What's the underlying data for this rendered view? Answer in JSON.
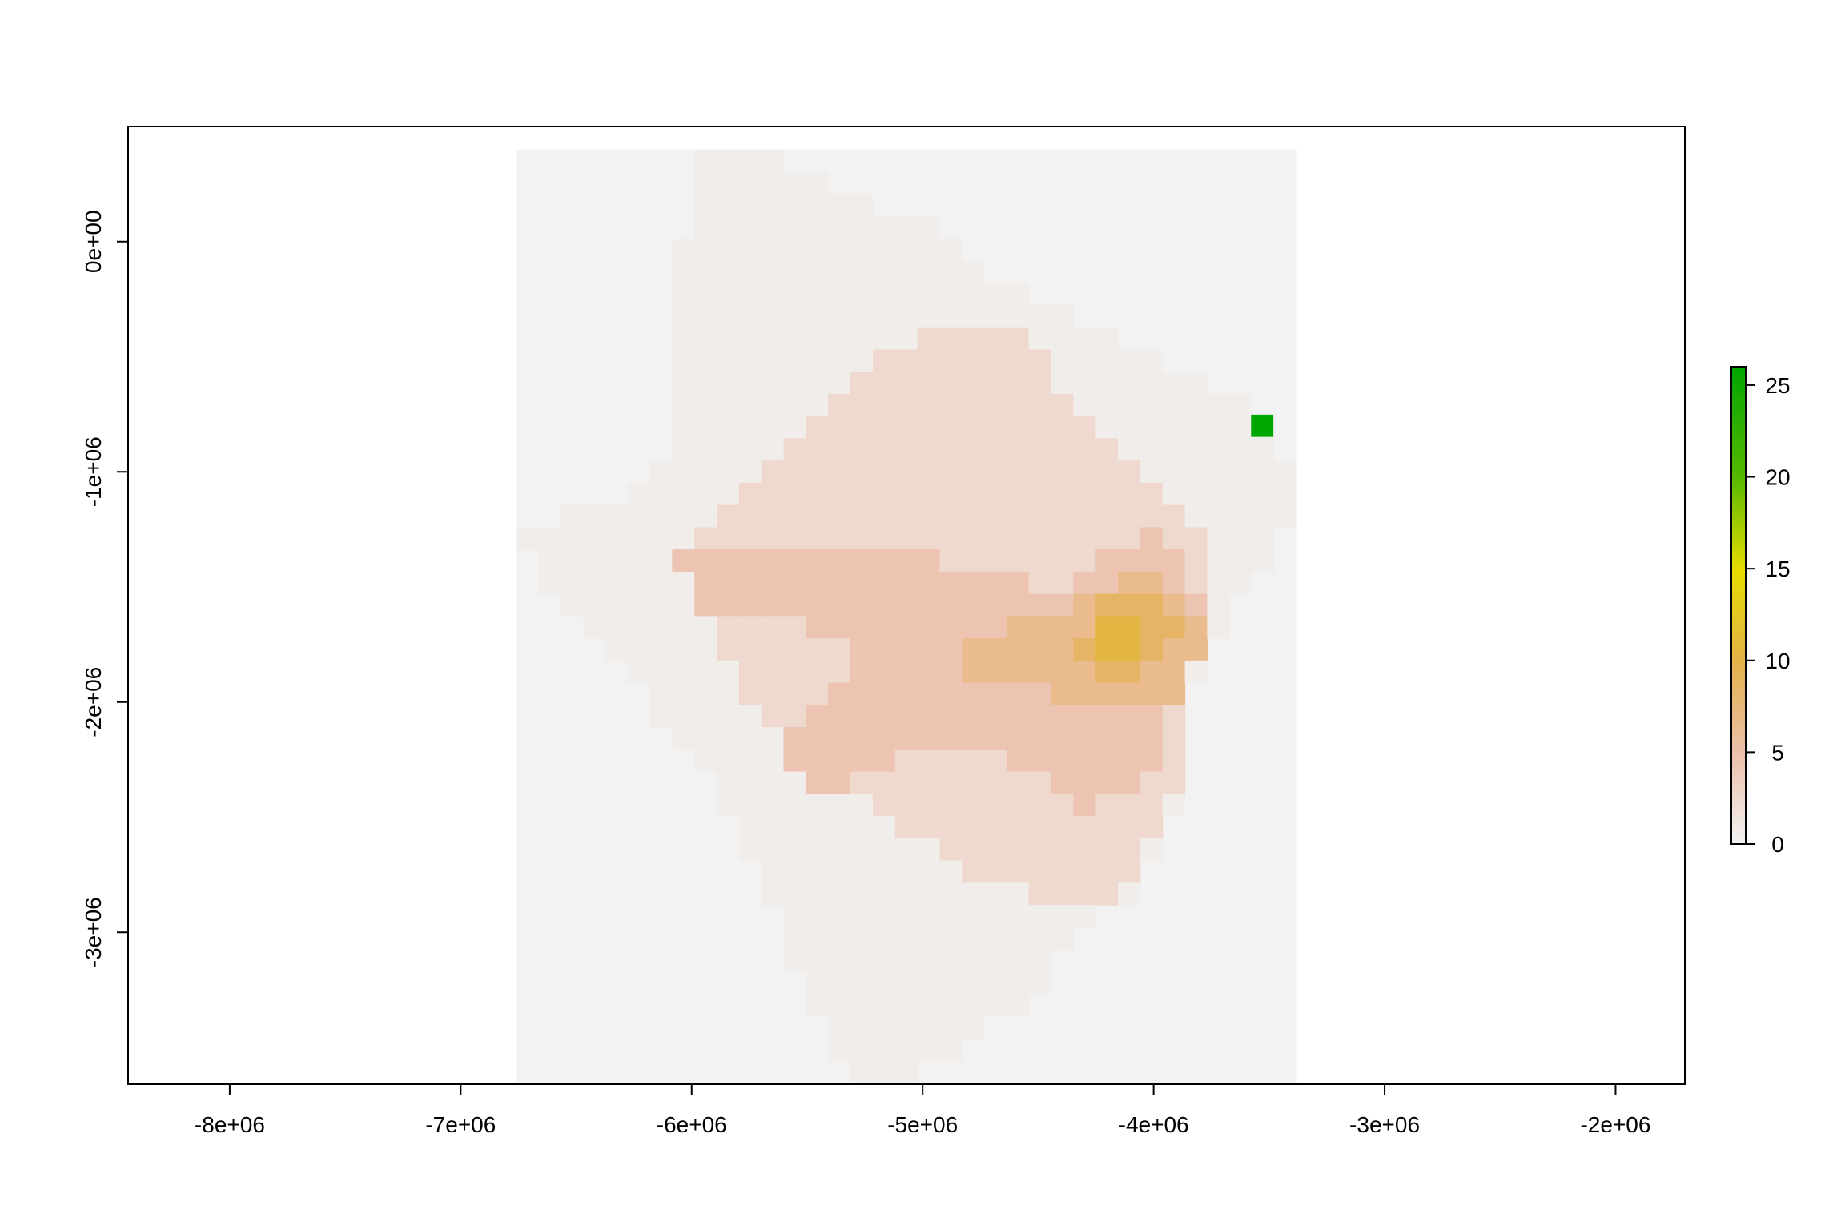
{
  "chart_data": {
    "type": "heatmap",
    "title": "",
    "xlabel": "",
    "ylabel": "",
    "xlim": [
      -8440000,
      -1700000
    ],
    "ylim": [
      -3660000,
      500000
    ],
    "x_ticks": [
      -8000000,
      -7000000,
      -6000000,
      -5000000,
      -4000000,
      -3000000,
      -2000000
    ],
    "x_tick_labels": [
      "-8e+06",
      "-7e+06",
      "-6e+06",
      "-5e+06",
      "-4e+06",
      "-3e+06",
      "-2e+06"
    ],
    "y_ticks": [
      0,
      -1000000,
      -2000000,
      -3000000
    ],
    "y_tick_labels": [
      "0e+00",
      "-1e+06",
      "-2e+06",
      "-3e+06"
    ],
    "raster_extent": {
      "xmin": -6760000,
      "xmax": -3380000,
      "ymin": -3660000,
      "ymax": 400000
    },
    "cell_size": 96500,
    "na_color": "#f2f2f2",
    "grid": false,
    "legend": {
      "position": "right",
      "min": 0,
      "max": 26,
      "ticks": [
        0,
        5,
        10,
        15,
        20,
        25
      ],
      "tick_labels": [
        "0",
        "5",
        "10",
        "15",
        "20",
        "25"
      ],
      "colors": [
        {
          "value": 0,
          "color": "#f2f2f2"
        },
        {
          "value": 5,
          "color": "#ebbfaa"
        },
        {
          "value": 10,
          "color": "#e3b148"
        },
        {
          "value": 15,
          "color": "#e6dd00"
        },
        {
          "value": 20,
          "color": "#55b800"
        },
        {
          "value": 26,
          "color": "#00a600"
        }
      ]
    },
    "regions": [
      {
        "level": 0.5,
        "polygon": [
          [
            -5990000,
            390000
          ],
          [
            -5700000,
            390000
          ],
          [
            -5500000,
            300000
          ],
          [
            -5300000,
            200000
          ],
          [
            -5000000,
            100000
          ],
          [
            -4800000,
            -80000
          ],
          [
            -4500000,
            -250000
          ],
          [
            -4200000,
            -420000
          ],
          [
            -4000000,
            -480000
          ],
          [
            -3800000,
            -580000
          ],
          [
            -3600000,
            -680000
          ],
          [
            -3480000,
            -780000
          ],
          [
            -3380000,
            -1050000
          ],
          [
            -3480000,
            -1400000
          ],
          [
            -3600000,
            -1550000
          ],
          [
            -3700000,
            -1620000
          ],
          [
            -3800000,
            -1900000
          ],
          [
            -3900000,
            -2200000
          ],
          [
            -3900000,
            -2500000
          ],
          [
            -4000000,
            -2700000
          ],
          [
            -4100000,
            -2850000
          ],
          [
            -4300000,
            -2980000
          ],
          [
            -4400000,
            -3100000
          ],
          [
            -4500000,
            -3250000
          ],
          [
            -4700000,
            -3400000
          ],
          [
            -4800000,
            -3500000
          ],
          [
            -4900000,
            -3580000
          ],
          [
            -5300000,
            -3660000
          ],
          [
            -5400000,
            -3450000
          ],
          [
            -5500000,
            -3300000
          ],
          [
            -5600000,
            -3000000
          ],
          [
            -5700000,
            -2800000
          ],
          [
            -5800000,
            -2600000
          ],
          [
            -5900000,
            -2400000
          ],
          [
            -6000000,
            -2200000
          ],
          [
            -6200000,
            -2000000
          ],
          [
            -6300000,
            -1850000
          ],
          [
            -6500000,
            -1620000
          ],
          [
            -6700000,
            -1400000
          ],
          [
            -6760000,
            -1300000
          ],
          [
            -6560000,
            -1170000
          ],
          [
            -6300000,
            -1170000
          ],
          [
            -6150000,
            -1000000
          ],
          [
            -6050000,
            -800000
          ],
          [
            -6080000,
            -300000
          ],
          [
            -6080000,
            -80000
          ],
          [
            -5990000,
            100000
          ]
        ]
      },
      {
        "level": 2.5,
        "polygon": [
          [
            -5800000,
            -1100000
          ],
          [
            -5600000,
            -850000
          ],
          [
            -5400000,
            -700000
          ],
          [
            -5200000,
            -500000
          ],
          [
            -4800000,
            -330000
          ],
          [
            -4500000,
            -420000
          ],
          [
            -4400000,
            -680000
          ],
          [
            -4200000,
            -850000
          ],
          [
            -4000000,
            -1100000
          ],
          [
            -3820000,
            -1200000
          ],
          [
            -3780000,
            -1500000
          ],
          [
            -3800000,
            -1800000
          ],
          [
            -3900000,
            -2100000
          ],
          [
            -3900000,
            -2400000
          ],
          [
            -4000000,
            -2600000
          ],
          [
            -4050000,
            -2750000
          ],
          [
            -4200000,
            -2850000
          ],
          [
            -4400000,
            -2900000
          ],
          [
            -4600000,
            -2800000
          ],
          [
            -4800000,
            -2750000
          ],
          [
            -5000000,
            -2600000
          ],
          [
            -5200000,
            -2450000
          ],
          [
            -5400000,
            -2300000
          ],
          [
            -5600000,
            -2100000
          ],
          [
            -5800000,
            -1950000
          ],
          [
            -5950000,
            -1650000
          ],
          [
            -6050000,
            -1400000
          ],
          [
            -5950000,
            -1200000
          ]
        ]
      },
      {
        "level": 4.5,
        "polygon": [
          [
            -6050000,
            -1300000
          ],
          [
            -5100000,
            -1300000
          ],
          [
            -4800000,
            -1450000
          ],
          [
            -4400000,
            -1500000
          ],
          [
            -4000000,
            -1250000
          ],
          [
            -3820000,
            -1500000
          ],
          [
            -3800000,
            -1800000
          ],
          [
            -3950000,
            -2000000
          ],
          [
            -4000000,
            -2300000
          ],
          [
            -4300000,
            -2500000
          ],
          [
            -4500000,
            -2300000
          ],
          [
            -4800000,
            -2200000
          ],
          [
            -5100000,
            -2250000
          ],
          [
            -5300000,
            -2350000
          ],
          [
            -5500000,
            -2400000
          ],
          [
            -5600000,
            -2150000
          ],
          [
            -5400000,
            -2000000
          ],
          [
            -5200000,
            -1800000
          ],
          [
            -5600000,
            -1650000
          ],
          [
            -6000000,
            -1650000
          ]
        ]
      },
      {
        "level": 6.5,
        "polygon": [
          [
            -4350000,
            -1600000
          ],
          [
            -4100000,
            -1400000
          ],
          [
            -3900000,
            -1500000
          ],
          [
            -3800000,
            -1700000
          ],
          [
            -3850000,
            -1950000
          ],
          [
            -4100000,
            -2020000
          ],
          [
            -4400000,
            -1980000
          ],
          [
            -4800000,
            -1900000
          ],
          [
            -4850000,
            -1750000
          ],
          [
            -4600000,
            -1650000
          ]
        ]
      },
      {
        "level": 8.5,
        "polygon": [
          [
            -4250000,
            -1600000
          ],
          [
            -4050000,
            -1500000
          ],
          [
            -3900000,
            -1650000
          ],
          [
            -3950000,
            -1820000
          ],
          [
            -4200000,
            -1900000
          ],
          [
            -4350000,
            -1780000
          ]
        ]
      },
      {
        "level": 10.5,
        "polygon": [
          [
            -4250000,
            -1650000
          ],
          [
            -4100000,
            -1580000
          ],
          [
            -4000000,
            -1750000
          ],
          [
            -4150000,
            -1850000
          ],
          [
            -4300000,
            -1800000
          ]
        ]
      }
    ],
    "highlight_cells": [
      {
        "x": -3530000,
        "y": -800000,
        "value": 26
      }
    ]
  }
}
